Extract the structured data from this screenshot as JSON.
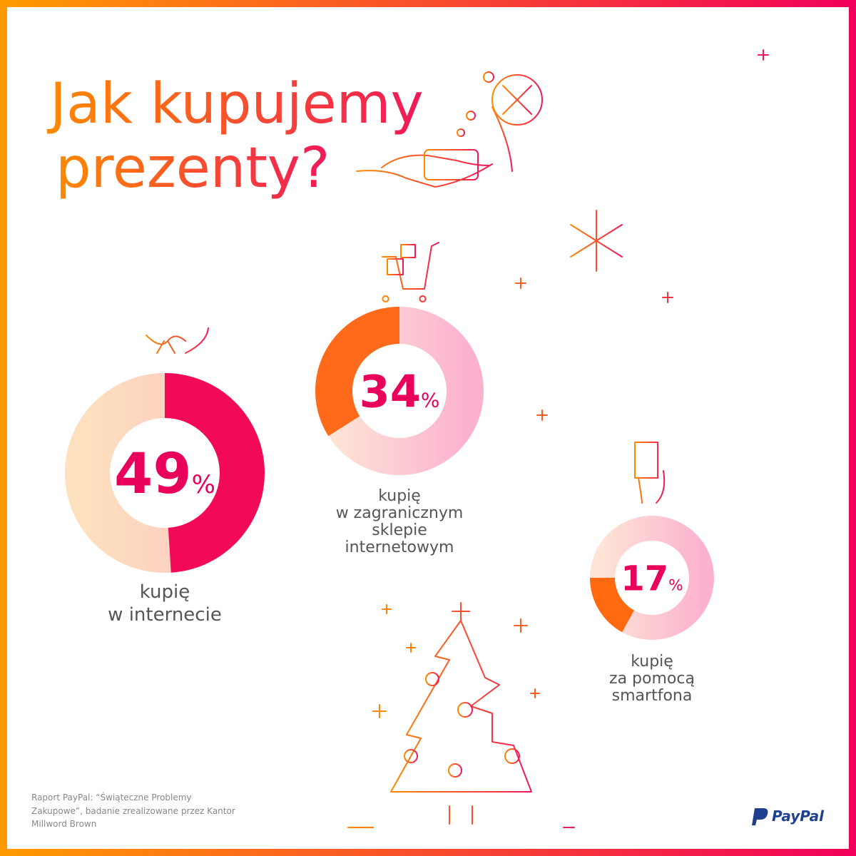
{
  "title_lines": [
    "Jak kupujemy",
    "prezenty?"
  ],
  "source_lines": [
    "Raport PayPal: “Świąteczne Problemy",
    "Zakupowe”, badanie zrealizowane przez Kantor",
    "Millword Brown"
  ],
  "logo": "PayPal",
  "chart_data": [
    {
      "type": "donut",
      "values": [
        49
      ],
      "unit": "%",
      "color": "#f20a58",
      "caption": [
        "kupię",
        "w internecie"
      ]
    },
    {
      "type": "donut",
      "values": [
        34
      ],
      "unit": "%",
      "color": "#ff6a1a",
      "caption": [
        "kupię",
        "w zagranicznym",
        "sklepie",
        "internetowym"
      ]
    },
    {
      "type": "donut",
      "values": [
        17
      ],
      "unit": "%",
      "color": "#ff6a10",
      "caption": [
        "kupię",
        "za pomocą",
        "smartfona"
      ]
    }
  ]
}
